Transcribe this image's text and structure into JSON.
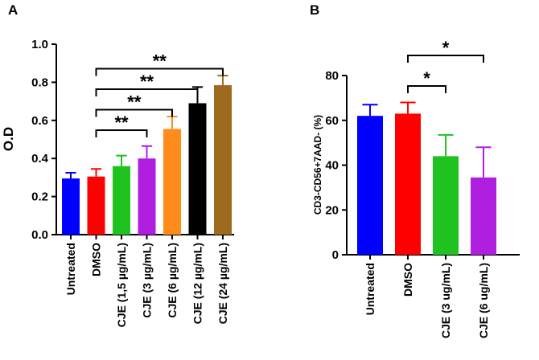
{
  "chart_data": [
    {
      "type": "bar",
      "panel_label": "A",
      "ylabel": "O.D",
      "ylim": [
        0,
        1.0
      ],
      "yticks": [
        "0.0",
        "0.2",
        "0.4",
        "0.6",
        "0.8",
        "1.0"
      ],
      "categories": [
        "Untreated",
        "DMSO",
        "CJE (1,5 µg/mL)",
        "CJE (3 µg/mL)",
        "CJE (6 µg/mL)",
        "CJE (12 µg/mL)",
        "CJE (24 µg/mL)"
      ],
      "values": [
        0.295,
        0.305,
        0.36,
        0.4,
        0.555,
        0.69,
        0.785
      ],
      "errors": [
        0.03,
        0.04,
        0.055,
        0.065,
        0.065,
        0.085,
        0.05
      ],
      "colors": [
        "#0000ff",
        "#ff0000",
        "#1fc21f",
        "#b01fe0",
        "#ff8c1a",
        "#000000",
        "#9e6a1e"
      ],
      "significance": [
        {
          "from": 1,
          "to": 3,
          "label": "**"
        },
        {
          "from": 1,
          "to": 4,
          "label": "**"
        },
        {
          "from": 1,
          "to": 5,
          "label": "**"
        },
        {
          "from": 1,
          "to": 6,
          "label": "**"
        }
      ]
    },
    {
      "type": "bar",
      "panel_label": "B",
      "ylabel": "CD3-CD56+7AAD- (%)",
      "ylim": [
        0,
        80
      ],
      "yticks": [
        "0",
        "20",
        "40",
        "60",
        "80"
      ],
      "categories": [
        "Untreated",
        "DMSO",
        "CJE (3 ug/mL)",
        "CJE (6 ug/mL)"
      ],
      "values": [
        62,
        63,
        44,
        34.5
      ],
      "errors": [
        5,
        5,
        9.5,
        13.5
      ],
      "colors": [
        "#0000ff",
        "#ff0000",
        "#1fc21f",
        "#b01fe0"
      ],
      "significance": [
        {
          "from": 1,
          "to": 2,
          "label": "*"
        },
        {
          "from": 1,
          "to": 3,
          "label": "*"
        }
      ]
    }
  ]
}
